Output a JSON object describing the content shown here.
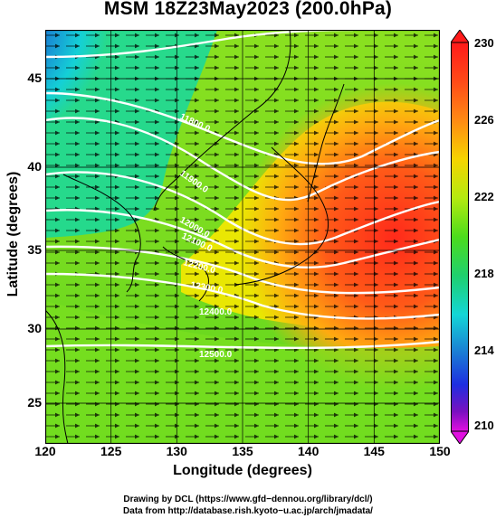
{
  "title": "MSM 18Z23May2023 (200.0hPa)",
  "xlabel": "Longitude (degrees)",
  "ylabel": "Latitude  (degrees)",
  "x_ticks": [
    "120",
    "125",
    "130",
    "135",
    "140",
    "145",
    "150"
  ],
  "y_ticks": [
    "25",
    "30",
    "35",
    "40",
    "45"
  ],
  "colorbar": {
    "ticks": [
      "230",
      "226",
      "222",
      "218",
      "214",
      "210"
    ],
    "range": [
      210,
      230
    ],
    "colors": [
      "#ff1a1a",
      "#ff6a18",
      "#ffaa10",
      "#f6e800",
      "#b4ea10",
      "#4cdc1c",
      "#1fd06e",
      "#14d6d6",
      "#1a7ad4",
      "#1e2ee0",
      "#7a10c0",
      "#e010e0"
    ]
  },
  "contour_labels": [
    "11800.0",
    "11900.0",
    "12000.0",
    "12100.0",
    "12200.0",
    "12300.0",
    "12400.0",
    "12500.0"
  ],
  "footer": {
    "line1": "Drawing by DCL (https://www.gfd−dennou.org/library/dcl/)",
    "line2": "Data from http://database.rish.kyoto−u.ac.jp/arch/jmadata/"
  },
  "chart_data": {
    "type": "heatmap",
    "title": "MSM 18Z23May2023 (200.0hPa)",
    "xlabel": "Longitude (degrees)",
    "ylabel": "Latitude  (degrees)",
    "xlim": [
      120,
      150
    ],
    "ylim": [
      22.4,
      47.6
    ],
    "shaded_variable_range": [
      210,
      230
    ],
    "contour_values": [
      11800,
      11900,
      12000,
      12100,
      12200,
      12300,
      12400,
      12500
    ],
    "overlays": [
      "streamline arrows (wind)",
      "coastlines",
      "lat/lon grid"
    ],
    "colorbar_position": "right"
  }
}
